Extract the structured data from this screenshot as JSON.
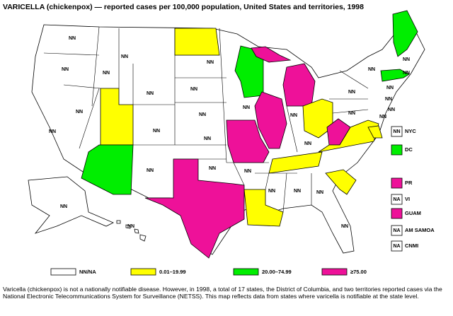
{
  "title": "VARICELLA (chickenpox) — reported cases per 100,000 population, United States and territories, 1998",
  "legend": [
    {
      "label": "NN/NA",
      "color": "#ffffff"
    },
    {
      "label": "0.01–19.99",
      "color": "#ffff00"
    },
    {
      "label": "20.00–74.99",
      "color": "#00ee00"
    },
    {
      "label": "≥75.00",
      "color": "#ee1199"
    }
  ],
  "state_labels": [
    "NN",
    "NN",
    "NN",
    "NN",
    "NN",
    "NN",
    "NN",
    "NN",
    "NN",
    "NN",
    "NN",
    "NN",
    "NN",
    "NN",
    "NN",
    "NN",
    "NN",
    "NN",
    "NN",
    "NN",
    "NN",
    "NN",
    "NN",
    "NN",
    "NN",
    "NN",
    "NN",
    "NN",
    "NN",
    "NN",
    "NN",
    "NN",
    "NN"
  ],
  "territories": [
    {
      "name": "NYC",
      "box_label": "NN",
      "class": 0
    },
    {
      "name": "DC",
      "class": 2
    },
    {
      "name": "PR",
      "class": 3
    },
    {
      "name": "VI",
      "box_label": "NA",
      "class": 0
    },
    {
      "name": "GUAM",
      "class": 3
    },
    {
      "name": "AM SAMOA",
      "box_label": "NA",
      "class": 0
    },
    {
      "name": "CNMI",
      "box_label": "NA",
      "class": 0
    }
  ],
  "footnote": "Varicella (chickenpox) is not a nationally notifiable disease. However, in 1998, a total of 17 states, the District of Columbia, and two territories reported cases via the National Electronic Telecommunications System for Surveillance (NETSS). This map reflects data from states where varicella is notifiable at the state level."
}
